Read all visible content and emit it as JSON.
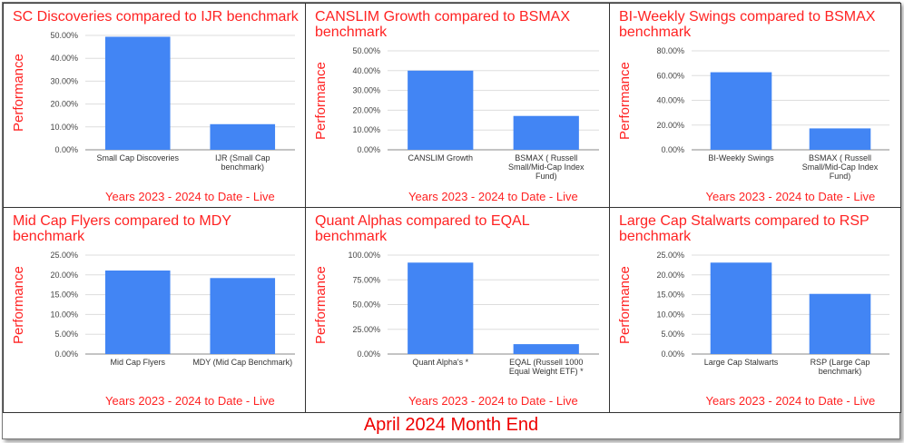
{
  "footer_title": "April 2024 Month End",
  "colors": {
    "bar": "#4285f4",
    "title": "#ff2222",
    "grid": "#dddddd"
  },
  "chart_data": [
    {
      "type": "bar",
      "title": "SC Discoveries compared to IJR benchmark",
      "ylabel": "Performance",
      "xlabel": "Years 2023 - 2024 to Date - Live",
      "categories": [
        [
          "Small Cap Discoveries"
        ],
        [
          "IJR (Small Cap",
          "benchmark)"
        ]
      ],
      "values": [
        49.4,
        11.2
      ],
      "ylim": [
        0,
        50
      ],
      "ticks": [
        "0.00%",
        "10.00%",
        "20.00%",
        "30.00%",
        "40.00%",
        "50.00%"
      ],
      "grid": true
    },
    {
      "type": "bar",
      "title": "CANSLIM Growth compared to BSMAX benchmark",
      "ylabel": "Performance",
      "xlabel": "Years 2023 - 2024 to Date - Live",
      "categories": [
        [
          "CANSLIM Growth"
        ],
        [
          "BSMAX ( Russell",
          "Small/Mid-Cap Index",
          "Fund)"
        ]
      ],
      "values": [
        40.0,
        17.1
      ],
      "ylim": [
        0,
        50
      ],
      "ticks": [
        "0.00%",
        "10.00%",
        "20.00%",
        "30.00%",
        "40.00%",
        "50.00%"
      ],
      "grid": true
    },
    {
      "type": "bar",
      "title": "BI-Weekly Swings compared to BSMAX benchmark",
      "ylabel": "Performance",
      "xlabel": "Years 2023 - 2024 to Date - Live",
      "categories": [
        [
          "BI-Weekly Swings"
        ],
        [
          "BSMAX ( Russell",
          "Small/Mid-Cap Index",
          "Fund)"
        ]
      ],
      "values": [
        62.7,
        17.3
      ],
      "ylim": [
        0,
        80
      ],
      "ticks": [
        "0.00%",
        "20.00%",
        "40.00%",
        "60.00%",
        "80.00%"
      ],
      "grid": true
    },
    {
      "type": "bar",
      "title": "Mid Cap Flyers compared to MDY benchmark",
      "ylabel": "Performance",
      "xlabel": "Years 2023 - 2024 to Date - Live",
      "categories": [
        [
          "Mid Cap Flyers"
        ],
        [
          "MDY (Mid Cap Benchmark)"
        ]
      ],
      "values": [
        21.1,
        19.2
      ],
      "ylim": [
        0,
        25
      ],
      "ticks": [
        "0.00%",
        "5.00%",
        "10.00%",
        "15.00%",
        "20.00%",
        "25.00%"
      ],
      "grid": true
    },
    {
      "type": "bar",
      "title": "Quant Alphas compared to EQAL benchmark",
      "ylabel": "Performance",
      "xlabel": "Years 2023 - 2024 to Date - Live",
      "categories": [
        [
          "Quant Alpha's   *"
        ],
        [
          "EQAL (Russell 1000",
          "Equal Weight ETF)  *"
        ]
      ],
      "values": [
        92.4,
        10.0
      ],
      "ylim": [
        0,
        100
      ],
      "ticks": [
        "0.00%",
        "25.00%",
        "50.00%",
        "75.00%",
        "100.00%"
      ],
      "grid": true
    },
    {
      "type": "bar",
      "title": "Large Cap Stalwarts compared to RSP benchmark",
      "ylabel": "Performance",
      "xlabel": "Years 2023 - 2024 to Date - Live",
      "categories": [
        [
          "Large Cap Stalwarts"
        ],
        [
          "RSP (Large Cap",
          "benchmark)"
        ]
      ],
      "values": [
        23.1,
        15.2
      ],
      "ylim": [
        0,
        25
      ],
      "ticks": [
        "0.00%",
        "5.00%",
        "10.00%",
        "15.00%",
        "20.00%",
        "25.00%"
      ],
      "grid": true
    }
  ]
}
